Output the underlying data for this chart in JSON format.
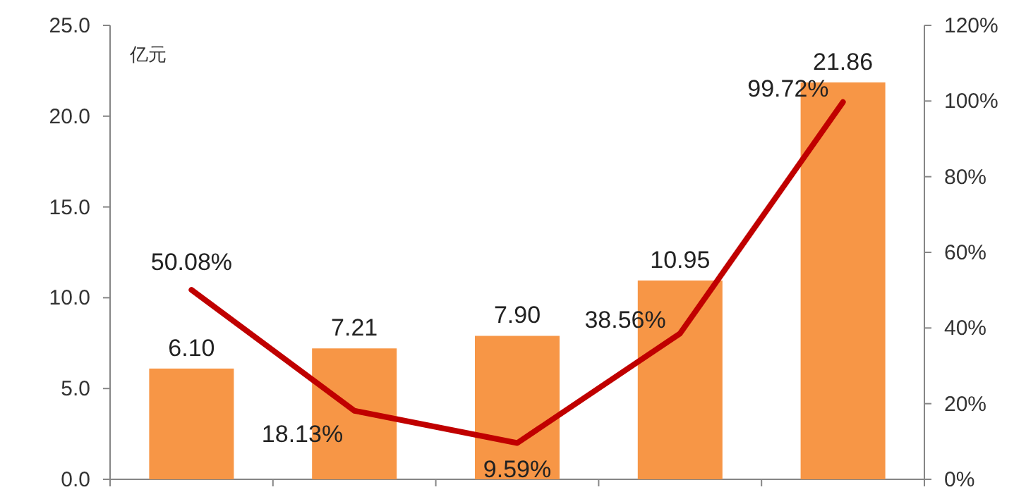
{
  "chart_data": {
    "type": "bar",
    "ylabel": "亿元",
    "categories": [
      null,
      null,
      null,
      null,
      null
    ],
    "series": [
      {
        "color": "#f79646",
        "values": [
          6.1,
          7.21,
          7.9,
          10.95,
          21.86
        ],
        "value_labels": [
          "6.10",
          "7.21",
          "7.90",
          "10.95",
          "21.86"
        ]
      },
      {
        "type": "line",
        "axis": "y2",
        "color": "#c00000",
        "values": [
          50.08,
          18.13,
          9.59,
          38.56,
          99.72
        ],
        "value_labels": [
          "50.08%",
          "18.13%",
          "9.59%",
          "38.56%",
          "99.72%"
        ]
      }
    ],
    "ylim": [
      0,
      25
    ],
    "yticks": [
      {
        "value": 0,
        "label": "0.0"
      },
      {
        "value": 5,
        "label": "5.0"
      },
      {
        "value": 10,
        "label": "10.0"
      },
      {
        "value": 15,
        "label": "15.0"
      },
      {
        "value": 20,
        "label": "20.0"
      },
      {
        "value": 25,
        "label": "25.0"
      }
    ],
    "y2lim": [
      0,
      120
    ],
    "y2ticks": [
      {
        "value": 0,
        "label": "0%"
      },
      {
        "value": 20,
        "label": "20%"
      },
      {
        "value": 40,
        "label": "40%"
      },
      {
        "value": 60,
        "label": "60%"
      },
      {
        "value": 80,
        "label": "80%"
      },
      {
        "value": 100,
        "label": "100%"
      },
      {
        "value": 120,
        "label": "120%"
      }
    ],
    "grid": false,
    "marker": "none",
    "line_style": "solid"
  }
}
